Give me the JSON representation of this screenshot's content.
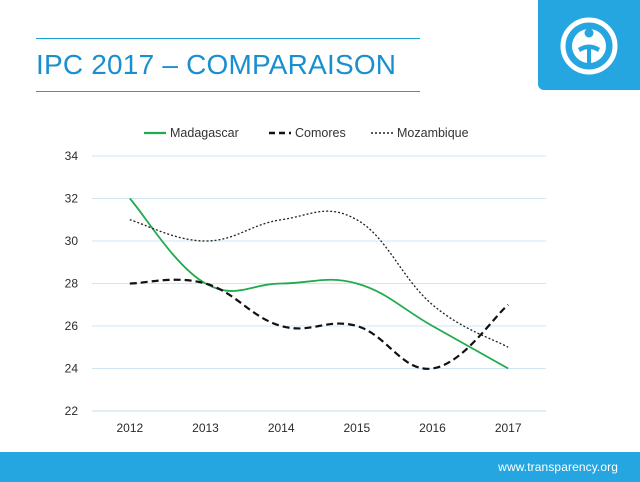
{
  "header": {
    "title": "IPC 2017 – COMPARAISON"
  },
  "footer": {
    "url": "www.transparency.org"
  },
  "colors": {
    "brand_blue": "#25a6e0",
    "title_blue": "#1a8fd0",
    "madagascar": "#20ab4d",
    "comores": "#111111",
    "mozambique": "#222222"
  },
  "chart_data": {
    "type": "line",
    "title": "",
    "xlabel": "",
    "ylabel": "",
    "categories": [
      "2012",
      "2013",
      "2014",
      "2015",
      "2016",
      "2017"
    ],
    "ylim": [
      22,
      34
    ],
    "yticks": [
      22,
      24,
      26,
      28,
      30,
      32,
      34
    ],
    "grid": true,
    "legend_position": "top",
    "smooth": true,
    "series": [
      {
        "name": "Madagascar",
        "values": [
          32,
          28,
          28,
          28,
          26,
          24
        ],
        "style": "solid",
        "color": "#20ab4d"
      },
      {
        "name": "Comores",
        "values": [
          28,
          28,
          26,
          26,
          24,
          27
        ],
        "style": "dashed",
        "color": "#111111"
      },
      {
        "name": "Mozambique",
        "values": [
          31,
          30,
          31,
          31,
          27,
          25
        ],
        "style": "dotted",
        "color": "#222222"
      }
    ]
  }
}
